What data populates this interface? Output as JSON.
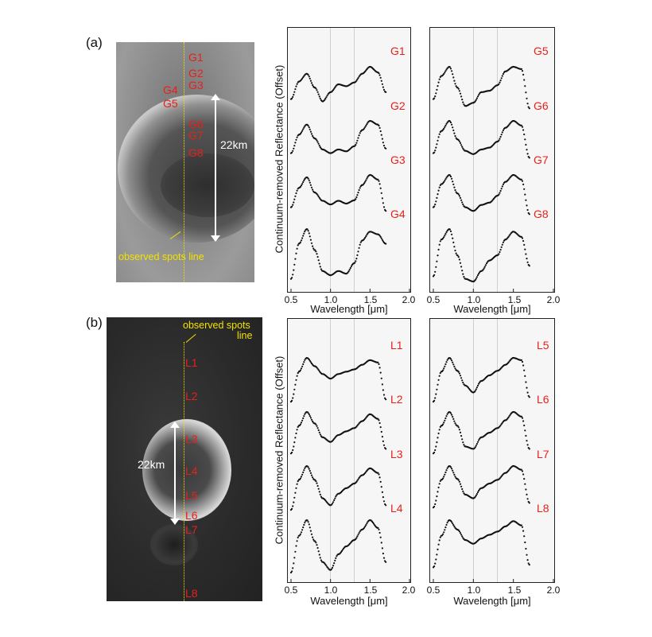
{
  "panel_a": {
    "letter": "(a)",
    "scale_label": "22km",
    "observed_label": "observed spots line",
    "spots": [
      "G1",
      "G2",
      "G3",
      "G4",
      "G5",
      "G6",
      "G7",
      "G8"
    ]
  },
  "panel_b": {
    "letter": "(b)",
    "scale_label": "22km",
    "observed_label_1": "observed spots",
    "observed_label_2": "line",
    "spots": [
      "L1",
      "L2",
      "L3",
      "L4",
      "L5",
      "L6",
      "L7",
      "L8"
    ]
  },
  "axes": {
    "xlabel": "Wavelength [μm]",
    "ylabel": "Continuum-removed Reflectance (Offset)",
    "xticks": [
      "0.5",
      "1.0",
      "1.5",
      "2.0"
    ],
    "gray_lines": [
      1.0,
      1.3
    ]
  },
  "colors": {
    "spot_label": "#e8201a",
    "observed_line": "#f2e200",
    "scale_bar": "#ffffff",
    "plot_bg": "#f6f6f6",
    "points": "#111111"
  },
  "chart_data": [
    {
      "type": "scatter",
      "id": "a-left",
      "xlim": [
        0.5,
        2.0
      ],
      "series": [
        {
          "name": "G1",
          "x": [
            0.5,
            0.6,
            0.7,
            0.8,
            0.9,
            1.0,
            1.1,
            1.2,
            1.3,
            1.4,
            1.5,
            1.6,
            1.7
          ],
          "y": [
            0.3,
            0.68,
            0.85,
            0.55,
            0.25,
            0.45,
            0.62,
            0.58,
            0.66,
            0.85,
            1.0,
            0.88,
            0.45
          ]
        },
        {
          "name": "G2",
          "x": [
            0.5,
            0.6,
            0.7,
            0.8,
            0.9,
            1.0,
            1.1,
            1.2,
            1.3,
            1.4,
            1.5,
            1.6,
            1.7
          ],
          "y": [
            0.3,
            0.7,
            0.92,
            0.62,
            0.38,
            0.3,
            0.38,
            0.34,
            0.45,
            0.8,
            1.0,
            0.92,
            0.4
          ]
        },
        {
          "name": "G3",
          "x": [
            0.5,
            0.6,
            0.7,
            0.8,
            0.9,
            1.0,
            1.1,
            1.2,
            1.3,
            1.4,
            1.5,
            1.6,
            1.7
          ],
          "y": [
            0.3,
            0.72,
            0.95,
            0.62,
            0.44,
            0.36,
            0.44,
            0.38,
            0.45,
            0.78,
            1.0,
            0.9,
            0.22
          ]
        },
        {
          "name": "G4",
          "x": [
            0.5,
            0.6,
            0.7,
            0.8,
            0.9,
            1.0,
            1.1,
            1.2,
            1.3,
            1.4,
            1.5,
            1.6,
            1.7
          ],
          "y": [
            0.05,
            0.72,
            1.0,
            0.6,
            0.2,
            0.12,
            0.2,
            0.15,
            0.35,
            0.78,
            0.95,
            0.9,
            0.72
          ]
        }
      ]
    },
    {
      "type": "scatter",
      "id": "a-right",
      "xlim": [
        0.5,
        2.0
      ],
      "series": [
        {
          "name": "G5",
          "x": [
            0.5,
            0.6,
            0.7,
            0.8,
            0.9,
            1.0,
            1.1,
            1.2,
            1.3,
            1.4,
            1.5,
            1.6,
            1.7
          ],
          "y": [
            0.3,
            0.8,
            1.0,
            0.55,
            0.15,
            0.22,
            0.45,
            0.48,
            0.6,
            0.9,
            1.0,
            0.95,
            0.1
          ]
        },
        {
          "name": "G6",
          "x": [
            0.5,
            0.6,
            0.7,
            0.8,
            0.9,
            1.0,
            1.1,
            1.2,
            1.3,
            1.4,
            1.5,
            1.6,
            1.7
          ],
          "y": [
            0.3,
            0.78,
            1.0,
            0.6,
            0.35,
            0.28,
            0.38,
            0.42,
            0.55,
            0.85,
            1.0,
            0.9,
            0.2
          ]
        },
        {
          "name": "G7",
          "x": [
            0.5,
            0.6,
            0.7,
            0.8,
            0.9,
            1.0,
            1.1,
            1.2,
            1.3,
            1.4,
            1.5,
            1.6,
            1.7
          ],
          "y": [
            0.3,
            0.8,
            1.0,
            0.6,
            0.3,
            0.22,
            0.35,
            0.4,
            0.55,
            0.85,
            1.0,
            0.9,
            0.15
          ]
        },
        {
          "name": "G8",
          "x": [
            0.5,
            0.6,
            0.7,
            0.8,
            0.9,
            1.0,
            1.1,
            1.2,
            1.3,
            1.4,
            1.5,
            1.6,
            1.7
          ],
          "y": [
            0.1,
            0.8,
            1.0,
            0.5,
            0.05,
            0.0,
            0.2,
            0.4,
            0.5,
            0.8,
            0.95,
            0.85,
            0.3
          ]
        }
      ]
    },
    {
      "type": "scatter",
      "id": "b-left",
      "xlim": [
        0.5,
        2.0
      ],
      "series": [
        {
          "name": "L1",
          "x": [
            0.5,
            0.6,
            0.7,
            0.8,
            0.9,
            1.0,
            1.1,
            1.2,
            1.3,
            1.4,
            1.5,
            1.6,
            1.7
          ],
          "y": [
            0.05,
            0.7,
            1.0,
            0.82,
            0.65,
            0.55,
            0.65,
            0.7,
            0.75,
            0.85,
            0.95,
            0.9,
            0.1
          ]
        },
        {
          "name": "L2",
          "x": [
            0.5,
            0.6,
            0.7,
            0.8,
            0.9,
            1.0,
            1.1,
            1.2,
            1.3,
            1.4,
            1.5,
            1.6,
            1.7
          ],
          "y": [
            0.1,
            0.7,
            1.0,
            0.75,
            0.45,
            0.35,
            0.5,
            0.58,
            0.65,
            0.8,
            0.95,
            0.85,
            0.2
          ]
        },
        {
          "name": "L3",
          "x": [
            0.5,
            0.6,
            0.7,
            0.8,
            0.9,
            1.0,
            1.1,
            1.2,
            1.3,
            1.4,
            1.5,
            1.6,
            1.7
          ],
          "y": [
            0.05,
            0.7,
            1.0,
            0.7,
            0.3,
            0.15,
            0.4,
            0.52,
            0.62,
            0.8,
            0.95,
            0.85,
            0.15
          ]
        },
        {
          "name": "L4",
          "x": [
            0.5,
            0.6,
            0.7,
            0.8,
            0.9,
            1.0,
            1.1,
            1.2,
            1.3,
            1.4,
            1.5,
            1.6,
            1.7
          ],
          "y": [
            0.0,
            0.7,
            1.0,
            0.6,
            0.2,
            0.05,
            0.35,
            0.5,
            0.62,
            0.82,
            1.0,
            0.85,
            0.2
          ]
        }
      ]
    },
    {
      "type": "scatter",
      "id": "b-right",
      "xlim": [
        0.5,
        2.0
      ],
      "series": [
        {
          "name": "L5",
          "x": [
            0.5,
            0.6,
            0.7,
            0.8,
            0.9,
            1.0,
            1.1,
            1.2,
            1.3,
            1.4,
            1.5,
            1.6,
            1.7
          ],
          "y": [
            0.05,
            0.7,
            1.0,
            0.72,
            0.4,
            0.25,
            0.5,
            0.62,
            0.72,
            0.85,
            1.0,
            0.95,
            0.15
          ]
        },
        {
          "name": "L6",
          "x": [
            0.5,
            0.6,
            0.7,
            0.8,
            0.9,
            1.0,
            1.1,
            1.2,
            1.3,
            1.4,
            1.5,
            1.6,
            1.7
          ],
          "y": [
            0.1,
            0.7,
            1.0,
            0.7,
            0.25,
            0.2,
            0.45,
            0.55,
            0.65,
            0.82,
            1.0,
            0.9,
            0.2
          ]
        },
        {
          "name": "L7",
          "x": [
            0.5,
            0.6,
            0.7,
            0.8,
            0.9,
            1.0,
            1.1,
            1.2,
            1.3,
            1.4,
            1.5,
            1.6,
            1.7
          ],
          "y": [
            0.1,
            0.7,
            1.0,
            0.72,
            0.38,
            0.3,
            0.52,
            0.62,
            0.7,
            0.85,
            1.0,
            0.92,
            0.2
          ]
        },
        {
          "name": "L8",
          "x": [
            0.5,
            0.6,
            0.7,
            0.8,
            0.9,
            1.0,
            1.1,
            1.2,
            1.3,
            1.4,
            1.5,
            1.6,
            1.7
          ],
          "y": [
            0.1,
            0.7,
            1.0,
            0.82,
            0.62,
            0.55,
            0.65,
            0.72,
            0.78,
            0.88,
            0.98,
            0.9,
            0.15
          ]
        }
      ]
    }
  ]
}
